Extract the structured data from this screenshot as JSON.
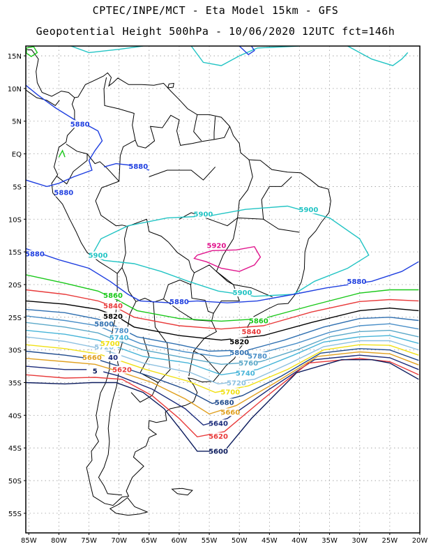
{
  "header": {
    "line1": "CPTEC/INPE/MCT -  Eta Model 15km - GFS",
    "line2": "Geopotential Height 500hPa - 10/06/2020 12UTC fct=146h"
  },
  "axes": {
    "lat_labels": [
      "15N",
      "10N",
      "5N",
      "EQ",
      "5S",
      "10S",
      "15S",
      "20S",
      "25S",
      "30S",
      "35S",
      "40S",
      "45S",
      "50S",
      "55S"
    ],
    "lat_values": [
      15,
      10,
      5,
      0,
      -5,
      -10,
      -15,
      -20,
      -25,
      -30,
      -35,
      -40,
      -45,
      -50,
      -55
    ],
    "lon_labels": [
      "85W",
      "80W",
      "75W",
      "70W",
      "65W",
      "60W",
      "55W",
      "50W",
      "45W",
      "40W",
      "35W",
      "30W",
      "25W",
      "20W"
    ],
    "lon_values": [
      -85,
      -80,
      -75,
      -70,
      -65,
      -60,
      -55,
      -50,
      -45,
      -40,
      -35,
      -30,
      -25,
      -20
    ],
    "lon_range": [
      -85.5,
      -20
    ],
    "lat_range": [
      -58,
      16.5
    ]
  },
  "colors": {
    "c5900": "#22c4c4",
    "c5920": "#e0148c",
    "c5880": "#1f3fe0",
    "c5860": "#19c819",
    "c5840": "#e83a3a",
    "c5820": "#000000",
    "c5800": "#2f6fb0",
    "c5780": "#4a8fc8",
    "c5760": "#5aa8c8",
    "c5740": "#46b4d8",
    "c5720": "#8cc0e0",
    "c5700": "#f0e014",
    "c5680": "#1f4a8c",
    "c5660": "#e0a020",
    "c5640": "#1a2a7a",
    "c5620": "#e83a3a",
    "c5600": "#0a1a5c",
    "land": "#000000",
    "grid": "#9a9a9a"
  },
  "contour_labels": [
    {
      "id": "l5880a",
      "text": "5880",
      "lon": -76.5,
      "lat": 4.3,
      "color": "c5880"
    },
    {
      "id": "l5880b",
      "text": "5880",
      "lon": -66.8,
      "lat": -2.2,
      "color": "c5880"
    },
    {
      "id": "l5880c",
      "text": "5880",
      "lon": -79.2,
      "lat": -6.2,
      "color": "c5880"
    },
    {
      "id": "l5880d",
      "text": "5880",
      "lon": -84.0,
      "lat": -15.6,
      "color": "c5880"
    },
    {
      "id": "l5880e",
      "text": "5880",
      "lon": -60.0,
      "lat": -22.9,
      "color": "c5880"
    },
    {
      "id": "l5880f",
      "text": "5880",
      "lon": -30.5,
      "lat": -19.8,
      "color": "c5880"
    },
    {
      "id": "l5900a",
      "text": "5900",
      "lon": -56.0,
      "lat": -9.5,
      "color": "c5900"
    },
    {
      "id": "l5900b",
      "text": "5900",
      "lon": -38.5,
      "lat": -8.8,
      "color": "c5900"
    },
    {
      "id": "l5900c",
      "text": "5900",
      "lon": -73.5,
      "lat": -15.8,
      "color": "c5900"
    },
    {
      "id": "l5900d",
      "text": "5900",
      "lon": -49.5,
      "lat": -21.5,
      "color": "c5900"
    },
    {
      "id": "l5920",
      "text": "5920",
      "lon": -53.8,
      "lat": -14.3,
      "color": "c5920"
    },
    {
      "id": "l5860a",
      "text": "5860",
      "lon": -71.0,
      "lat": -21.9,
      "color": "c5860"
    },
    {
      "id": "l5860b",
      "text": "5860",
      "lon": -46.8,
      "lat": -25.8,
      "color": "c5860"
    },
    {
      "id": "l5840a",
      "text": "5840",
      "lon": -71.0,
      "lat": -23.5,
      "color": "c5840"
    },
    {
      "id": "l5840b",
      "text": "5840",
      "lon": -48.0,
      "lat": -27.5,
      "color": "c5840"
    },
    {
      "id": "l5820a",
      "text": "5820",
      "lon": -71.0,
      "lat": -25.1,
      "color": "c5820"
    },
    {
      "id": "l5820b",
      "text": "5820",
      "lon": -50.0,
      "lat": -29.0,
      "color": "c5820"
    },
    {
      "id": "l5800a",
      "text": "5800",
      "lon": -72.5,
      "lat": -26.3,
      "color": "c5800"
    },
    {
      "id": "l5800b",
      "text": "5800",
      "lon": -50.0,
      "lat": -30.7,
      "color": "c5800"
    },
    {
      "id": "l5780a",
      "text": "780",
      "lon": -69.6,
      "lat": -27.3,
      "color": "c5780"
    },
    {
      "id": "l5780b",
      "text": "5780",
      "lon": -47.0,
      "lat": -31.2,
      "color": "c5780"
    },
    {
      "id": "l5760",
      "text": "5760",
      "lon": -48.5,
      "lat": -32.3,
      "color": "c5760"
    },
    {
      "id": "l5740a",
      "text": "5740",
      "lon": -70.0,
      "lat": -28.4,
      "color": "c5740"
    },
    {
      "id": "l5740b",
      "text": "5740",
      "lon": -49.0,
      "lat": -33.8,
      "color": "c5740"
    },
    {
      "id": "l5720a",
      "text": "5720",
      "lon": -72.5,
      "lat": -29.8,
      "color": "c5720"
    },
    {
      "id": "l5720b",
      "text": "5720",
      "lon": -50.5,
      "lat": -35.3,
      "color": "c5720"
    },
    {
      "id": "l5700a",
      "text": "5700",
      "lon": -71.5,
      "lat": -29.3,
      "color": "c5700"
    },
    {
      "id": "l5700b",
      "text": "5700",
      "lon": -51.5,
      "lat": -36.7,
      "color": "c5700"
    },
    {
      "id": "l5680",
      "text": "5680",
      "lon": -52.5,
      "lat": -38.3,
      "color": "c5680"
    },
    {
      "id": "l5660a",
      "text": "5660",
      "lon": -74.5,
      "lat": -31.4,
      "color": "c5660"
    },
    {
      "id": "l5660b",
      "text": "5660",
      "lon": -51.5,
      "lat": -39.8,
      "color": "c5660"
    },
    {
      "id": "l5640a",
      "text": "40",
      "lon": -71.0,
      "lat": -31.4,
      "color": "c5640"
    },
    {
      "id": "l5640b",
      "text": "5640",
      "lon": -53.5,
      "lat": -41.5,
      "color": "c5640"
    },
    {
      "id": "l5620a",
      "text": "5620",
      "lon": -69.5,
      "lat": -33.3,
      "color": "c5620"
    },
    {
      "id": "l5620b",
      "text": "5620",
      "lon": -53.5,
      "lat": -43.5,
      "color": "c5620"
    },
    {
      "id": "l5600a",
      "text": "5600",
      "lon": -53.5,
      "lat": -45.8,
      "color": "c5600"
    },
    {
      "id": "l5600b",
      "text": "5",
      "lon": -74.0,
      "lat": -33.5,
      "color": "c5600"
    }
  ]
}
